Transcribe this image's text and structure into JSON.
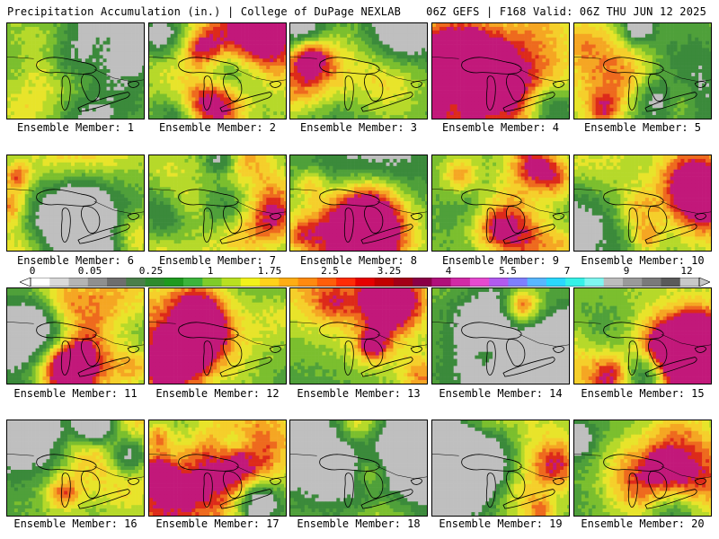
{
  "header": {
    "left": "Precipitation Accumulation (in.) | College of DuPage NEXLAB",
    "right": "06Z GEFS | F168 Valid: 06Z THU JUN 12 2025"
  },
  "members": [
    {
      "caption": "Ensemble Member: 1"
    },
    {
      "caption": "Ensemble Member: 2"
    },
    {
      "caption": "Ensemble Member: 3"
    },
    {
      "caption": "Ensemble Member: 4"
    },
    {
      "caption": "Ensemble Member: 5"
    },
    {
      "caption": "Ensemble Member: 6"
    },
    {
      "caption": "Ensemble Member: 7"
    },
    {
      "caption": "Ensemble Member: 8"
    },
    {
      "caption": "Ensemble Member: 9"
    },
    {
      "caption": "Ensemble Member: 10"
    },
    {
      "caption": "Ensemble Member: 11"
    },
    {
      "caption": "Ensemble Member: 12"
    },
    {
      "caption": "Ensemble Member: 13"
    },
    {
      "caption": "Ensemble Member: 14"
    },
    {
      "caption": "Ensemble Member: 15"
    },
    {
      "caption": "Ensemble Member: 16"
    },
    {
      "caption": "Ensemble Member: 17"
    },
    {
      "caption": "Ensemble Member: 18"
    },
    {
      "caption": "Ensemble Member: 19"
    },
    {
      "caption": "Ensemble Member: 20"
    }
  ],
  "colorbar": {
    "tick_labels": [
      "0",
      "0.05",
      "0.25",
      "1",
      "1.75",
      "2.5",
      "3.25",
      "4",
      "5.5",
      "7",
      "9",
      "12"
    ],
    "colors": [
      "#ffffff",
      "#d9d9d9",
      "#b4b4b4",
      "#8f8f8f",
      "#6e6e6e",
      "#4a7f4a",
      "#2e8b2e",
      "#1f9a1f",
      "#3cb43c",
      "#7fcc2a",
      "#b9e021",
      "#f2f21a",
      "#ffd21a",
      "#ffad14",
      "#ff8a0f",
      "#ff5e0a",
      "#ff2c06",
      "#e60000",
      "#c20000",
      "#a30018",
      "#8a0046",
      "#b0107a",
      "#d12aa6",
      "#e64ad0",
      "#b25af0",
      "#7f7fff",
      "#58b7ff",
      "#2ad8ff",
      "#36f2e8",
      "#7ff7f0",
      "#bdbdbd",
      "#9a9a9a",
      "#7a7a7a",
      "#5a5a5a",
      "#c8c8c8"
    ],
    "palette": {
      "gray_light": "#bfbfbf",
      "green_dark": "#3b8a3b",
      "green_mid": "#4fa03a",
      "green_light": "#7bbf2e",
      "yellow_green": "#b6d92a",
      "yellow": "#e8e42a",
      "yellow_orange": "#f5cf2b",
      "orange": "#f5a623",
      "red_orange": "#ee6a1e",
      "red": "#dd2a1a",
      "magenta": "#c2187a"
    }
  }
}
